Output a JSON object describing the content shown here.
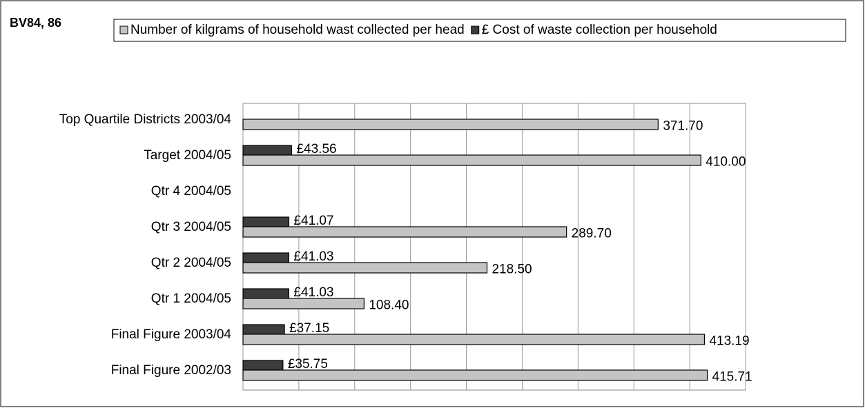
{
  "chart_data": {
    "type": "hbar",
    "title": "BV84, 86",
    "categories": [
      "Top Quartile Districts 2003/04",
      "Target 2004/05",
      "Qtr 4 2004/05",
      "Qtr 3 2004/05",
      "Qtr 2 2004/05",
      "Qtr 1 2004/05",
      "Final Figure 2003/04",
      "Final Figure 2002/03"
    ],
    "series": [
      {
        "name": "Number of kilgrams of household wast collected per head",
        "color": "#c4c4c4",
        "values": [
          371.7,
          410.0,
          null,
          289.7,
          218.5,
          108.4,
          413.19,
          415.71
        ],
        "value_labels": [
          "371.70",
          "410.00",
          null,
          "289.70",
          "218.50",
          "108.40",
          "413.19",
          "415.71"
        ]
      },
      {
        "name": "£ Cost of waste collection per household",
        "color": "#3c3c3c",
        "values": [
          null,
          43.56,
          null,
          41.07,
          41.03,
          41.03,
          37.15,
          35.75
        ],
        "value_labels": [
          null,
          "£43.56",
          null,
          "£41.07",
          "£41.03",
          "£41.03",
          "£37.15",
          "£35.75"
        ]
      }
    ],
    "xlim": [
      0,
      450
    ],
    "xticks": [
      0,
      50,
      100,
      150,
      200,
      250,
      300,
      350,
      400,
      450
    ],
    "grid": true,
    "legend": "top"
  }
}
